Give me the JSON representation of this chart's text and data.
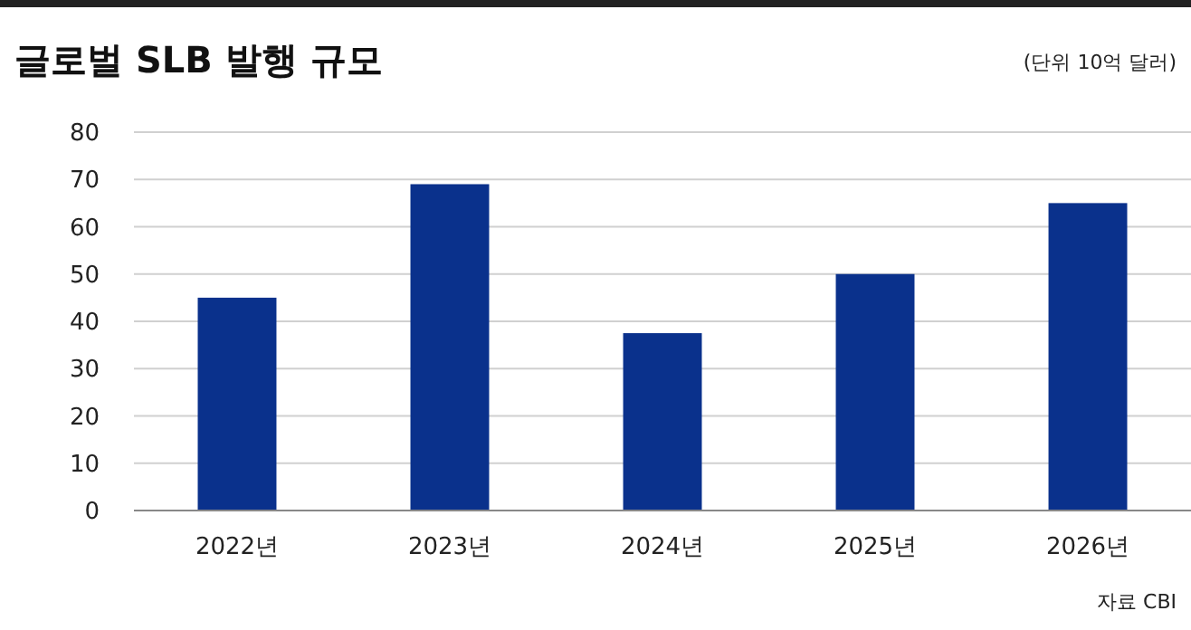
{
  "chart_data": {
    "type": "bar",
    "title": "글로벌 SLB 발행 규모",
    "subtitle": "(단위 10억 달러)",
    "categories": [
      "2022년",
      "2023년",
      "2024년",
      "2025년",
      "2026년"
    ],
    "values": [
      45,
      69,
      37.5,
      50,
      65
    ],
    "color": "#0a318c",
    "ylim": [
      0,
      80
    ],
    "yticks": [
      0,
      10,
      20,
      30,
      40,
      50,
      60,
      70,
      80
    ],
    "grid": "y",
    "annotations": [
      "자료 CBI"
    ]
  }
}
